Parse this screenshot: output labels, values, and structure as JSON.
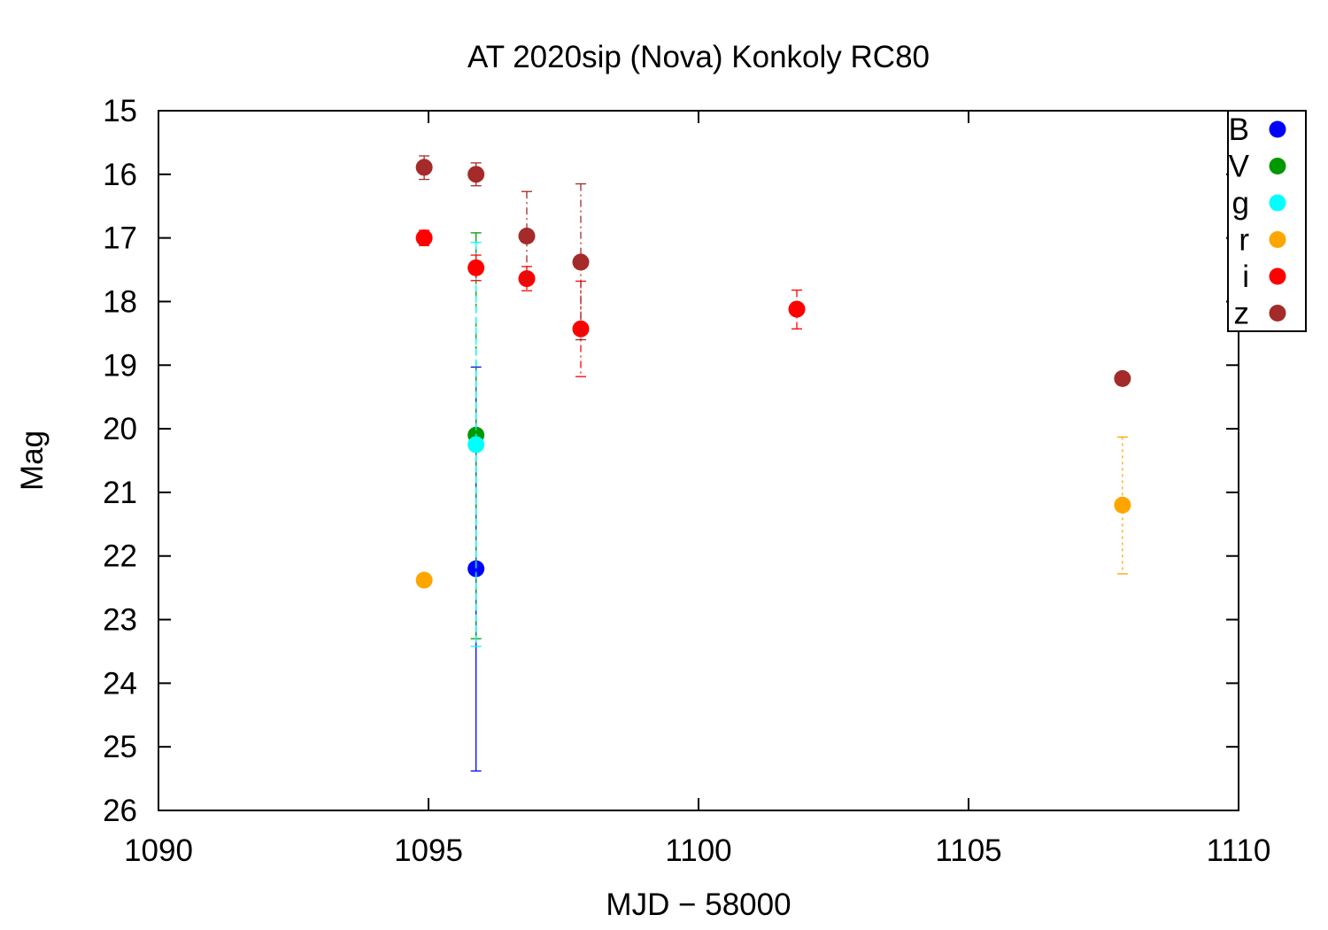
{
  "chart_data": {
    "type": "scatter",
    "title": "AT 2020sip (Nova) Konkoly RC80",
    "xlabel": "MJD − 58000",
    "ylabel": "Mag",
    "xlim": [
      1090,
      1110
    ],
    "ylim": [
      15,
      26
    ],
    "y_inverted": true,
    "x_ticks": [
      1090,
      1095,
      1100,
      1105,
      1110
    ],
    "y_ticks": [
      15,
      16,
      17,
      18,
      19,
      20,
      21,
      22,
      23,
      24,
      25,
      26
    ],
    "grid": false,
    "legend_position": "top-right",
    "series": [
      {
        "name": "B",
        "color": "#0000ff",
        "points": [
          {
            "x": 1095.88,
            "y": 22.2,
            "err_lo": 19.03,
            "err_hi": 25.38
          }
        ]
      },
      {
        "name": "V",
        "color": "#009900",
        "points": [
          {
            "x": 1095.88,
            "y": 20.1,
            "err_lo": 16.92,
            "err_hi": 23.3
          }
        ]
      },
      {
        "name": "g",
        "color": "#00ffff",
        "points": [
          {
            "x": 1095.88,
            "y": 20.25,
            "err_lo": 17.07,
            "err_hi": 23.42
          }
        ]
      },
      {
        "name": "r",
        "color": "#ffa500",
        "points": [
          {
            "x": 1094.92,
            "y": 22.38,
            "err_lo": null,
            "err_hi": null
          },
          {
            "x": 1107.85,
            "y": 21.2,
            "err_lo": 20.13,
            "err_hi": 22.28
          }
        ]
      },
      {
        "name": "i",
        "color": "#ff0000",
        "points": [
          {
            "x": 1094.92,
            "y": 17.0,
            "err_lo": 16.88,
            "err_hi": 17.12
          },
          {
            "x": 1095.88,
            "y": 17.47,
            "err_lo": 17.27,
            "err_hi": 17.67
          },
          {
            "x": 1096.82,
            "y": 17.64,
            "err_lo": 17.45,
            "err_hi": 17.83
          },
          {
            "x": 1097.82,
            "y": 18.43,
            "err_lo": 17.68,
            "err_hi": 19.18
          },
          {
            "x": 1101.82,
            "y": 18.12,
            "err_lo": 17.82,
            "err_hi": 18.43
          }
        ]
      },
      {
        "name": "z",
        "color": "#a52a2a",
        "points": [
          {
            "x": 1094.92,
            "y": 15.89,
            "err_lo": 15.71,
            "err_hi": 16.08
          },
          {
            "x": 1095.88,
            "y": 16.0,
            "err_lo": 15.82,
            "err_hi": 16.18
          },
          {
            "x": 1096.82,
            "y": 16.97,
            "err_lo": 16.27,
            "err_hi": 17.67
          },
          {
            "x": 1097.82,
            "y": 17.38,
            "err_lo": 16.15,
            "err_hi": 18.6
          },
          {
            "x": 1107.85,
            "y": 19.21,
            "err_lo": null,
            "err_hi": null
          }
        ]
      }
    ]
  }
}
